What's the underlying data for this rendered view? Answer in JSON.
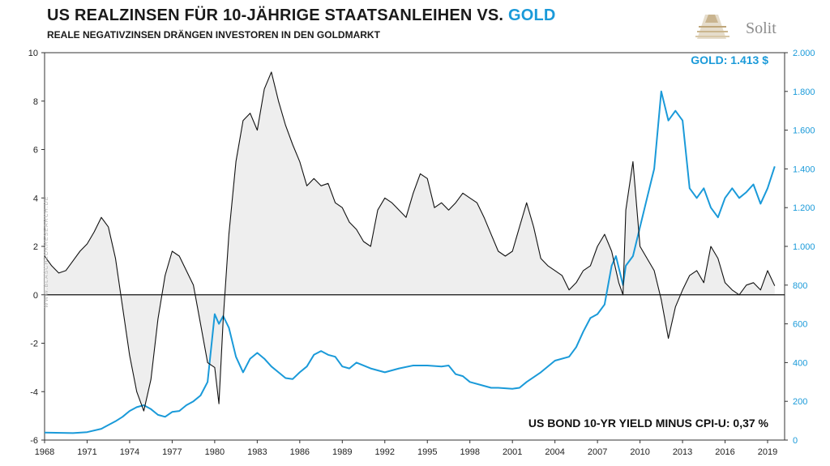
{
  "title_part1": "US REALZINSEN FÜR 10-JÄHRIGE STAATSANLEIHEN  VS.",
  "title_part2": "GOLD",
  "subtitle": "REALE NEGATIVZINSEN DRÄNGEN INVESTOREN IN DEN GOLDMARKT",
  "logo_text": "Solit",
  "watermark": "WWW.BLASCHZOKRESEARCH.DE",
  "gold_annotation": "GOLD: 1.413 $",
  "bond_annotation": "US BOND 10-YR YIELD MINUS CPI-U: 0,37 %",
  "colors": {
    "gold": "#1a9ad9",
    "real_yield": "#111111",
    "fill": "#eeeeee"
  },
  "chart_data": {
    "type": "line",
    "title": "US REALZINSEN FÜR 10-JÄHRIGE STAATSANLEIHEN  VS. GOLD",
    "subtitle": "REALE NEGATIVZINSEN DRÄNGEN INVESTOREN IN DEN GOLDMARKT",
    "xlim": [
      1968,
      2020.2
    ],
    "x_ticks": [
      1968,
      1971,
      1974,
      1977,
      1980,
      1983,
      1986,
      1989,
      1992,
      1995,
      1998,
      2001,
      2004,
      2007,
      2010,
      2013,
      2016,
      2019
    ],
    "y_left": {
      "ylim": [
        -6,
        10
      ],
      "ticks": [
        -6,
        -4,
        -2,
        0,
        2,
        4,
        6,
        8,
        10
      ],
      "tick_labels": [
        "-6",
        "-4",
        "-2",
        "0",
        "2",
        "4",
        "6",
        "8",
        "10"
      ]
    },
    "y_right": {
      "ylim": [
        0,
        2000
      ],
      "ticks": [
        0,
        200,
        400,
        600,
        800,
        1000,
        1200,
        1400,
        1600,
        1800,
        2000
      ],
      "tick_labels": [
        "0",
        "200",
        "400",
        "600",
        "800",
        "1.000",
        "1.200",
        "1.400",
        "1.600",
        "1.800",
        "2.000"
      ]
    },
    "grid": false,
    "series": [
      {
        "name": "US BOND 10-YR YIELD MINUS CPI-U",
        "axis": "left",
        "fill_to_zero": true,
        "x": [
          1968.0,
          1968.5,
          1969.0,
          1969.5,
          1970.0,
          1970.5,
          1971.0,
          1971.5,
          1972.0,
          1972.5,
          1973.0,
          1973.5,
          1974.0,
          1974.5,
          1975.0,
          1975.5,
          1976.0,
          1976.5,
          1977.0,
          1977.5,
          1978.0,
          1978.5,
          1979.0,
          1979.5,
          1980.0,
          1980.3,
          1980.6,
          1981.0,
          1981.5,
          1982.0,
          1982.5,
          1983.0,
          1983.5,
          1984.0,
          1984.5,
          1985.0,
          1985.5,
          1986.0,
          1986.5,
          1987.0,
          1987.5,
          1988.0,
          1988.5,
          1989.0,
          1989.5,
          1990.0,
          1990.5,
          1991.0,
          1991.5,
          1992.0,
          1992.5,
          1993.0,
          1993.5,
          1994.0,
          1994.5,
          1995.0,
          1995.5,
          1996.0,
          1996.5,
          1997.0,
          1997.5,
          1998.0,
          1998.5,
          1999.0,
          1999.5,
          2000.0,
          2000.5,
          2001.0,
          2001.5,
          2002.0,
          2002.5,
          2003.0,
          2003.5,
          2004.0,
          2004.5,
          2005.0,
          2005.5,
          2006.0,
          2006.5,
          2007.0,
          2007.5,
          2008.0,
          2008.5,
          2008.8,
          2009.0,
          2009.5,
          2010.0,
          2010.5,
          2011.0,
          2011.5,
          2012.0,
          2012.5,
          2013.0,
          2013.5,
          2014.0,
          2014.5,
          2015.0,
          2015.5,
          2016.0,
          2016.5,
          2017.0,
          2017.5,
          2018.0,
          2018.5,
          2019.0,
          2019.5
        ],
        "y": [
          1.6,
          1.2,
          0.9,
          1.0,
          1.4,
          1.8,
          2.1,
          2.6,
          3.2,
          2.8,
          1.5,
          -0.5,
          -2.5,
          -4.0,
          -4.8,
          -3.5,
          -1.0,
          0.8,
          1.8,
          1.6,
          1.0,
          0.4,
          -1.2,
          -2.8,
          -3.0,
          -4.5,
          -1.0,
          2.5,
          5.5,
          7.2,
          7.5,
          6.8,
          8.5,
          9.2,
          8.0,
          7.0,
          6.2,
          5.5,
          4.5,
          4.8,
          4.5,
          4.6,
          3.8,
          3.6,
          3.0,
          2.7,
          2.2,
          2.0,
          3.5,
          4.0,
          3.8,
          3.5,
          3.2,
          4.2,
          5.0,
          4.8,
          3.6,
          3.8,
          3.5,
          3.8,
          4.2,
          4.0,
          3.8,
          3.2,
          2.5,
          1.8,
          1.6,
          1.8,
          2.8,
          3.8,
          2.8,
          1.5,
          1.2,
          1.0,
          0.8,
          0.2,
          0.5,
          1.0,
          1.2,
          2.0,
          2.5,
          1.8,
          0.5,
          0.0,
          3.5,
          5.5,
          2.0,
          1.5,
          1.0,
          -0.2,
          -1.8,
          -0.5,
          0.2,
          0.8,
          1.0,
          0.5,
          2.0,
          1.5,
          0.5,
          0.2,
          0.0,
          0.4,
          0.5,
          0.2,
          1.0,
          0.37
        ]
      },
      {
        "name": "GOLD",
        "axis": "right",
        "x": [
          1968.0,
          1970.0,
          1971.0,
          1972.0,
          1973.0,
          1973.5,
          1974.0,
          1974.5,
          1975.0,
          1975.5,
          1976.0,
          1976.5,
          1977.0,
          1977.5,
          1978.0,
          1978.5,
          1979.0,
          1979.5,
          1980.0,
          1980.3,
          1980.6,
          1981.0,
          1981.5,
          1982.0,
          1982.5,
          1983.0,
          1983.5,
          1984.0,
          1984.5,
          1985.0,
          1985.5,
          1986.0,
          1986.5,
          1987.0,
          1987.5,
          1988.0,
          1988.5,
          1989.0,
          1989.5,
          1990.0,
          1991.0,
          1992.0,
          1993.0,
          1994.0,
          1995.0,
          1996.0,
          1996.5,
          1997.0,
          1997.5,
          1998.0,
          1999.0,
          1999.5,
          2000.0,
          2001.0,
          2001.5,
          2002.0,
          2003.0,
          2004.0,
          2005.0,
          2005.5,
          2006.0,
          2006.5,
          2007.0,
          2007.5,
          2008.0,
          2008.3,
          2008.8,
          2009.0,
          2009.5,
          2010.0,
          2010.5,
          2011.0,
          2011.5,
          2012.0,
          2012.5,
          2013.0,
          2013.5,
          2014.0,
          2014.5,
          2015.0,
          2015.5,
          2016.0,
          2016.5,
          2017.0,
          2017.5,
          2018.0,
          2018.5,
          2019.0,
          2019.5
        ],
        "y": [
          39,
          36,
          41,
          58,
          97,
          120,
          150,
          170,
          180,
          160,
          130,
          120,
          145,
          150,
          180,
          200,
          230,
          300,
          650,
          600,
          640,
          580,
          430,
          350,
          420,
          450,
          420,
          380,
          350,
          320,
          315,
          350,
          380,
          440,
          460,
          440,
          430,
          380,
          370,
          400,
          370,
          350,
          370,
          385,
          385,
          380,
          385,
          340,
          330,
          300,
          280,
          270,
          270,
          265,
          270,
          300,
          350,
          410,
          430,
          480,
          560,
          630,
          650,
          700,
          900,
          950,
          800,
          900,
          950,
          1100,
          1250,
          1400,
          1800,
          1650,
          1700,
          1650,
          1300,
          1250,
          1300,
          1200,
          1150,
          1250,
          1300,
          1250,
          1280,
          1320,
          1220,
          1300,
          1413
        ]
      }
    ],
    "annotations": [
      "GOLD: 1.413 $",
      "US BOND 10-YR YIELD MINUS CPI-U: 0,37 %"
    ]
  }
}
